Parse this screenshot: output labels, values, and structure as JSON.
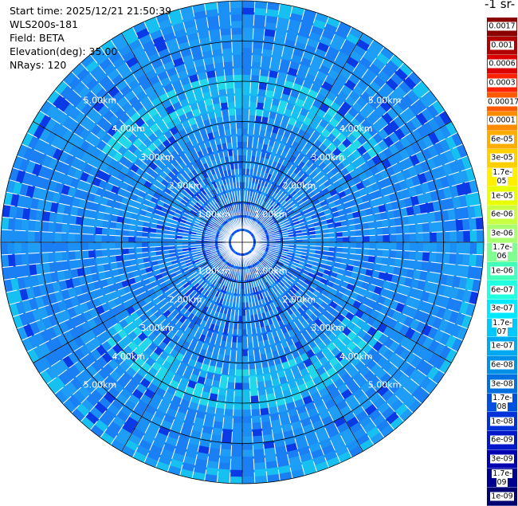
{
  "header": {
    "start_time": "Start time: 2025/12/21 21:50:39",
    "instrument": "WLS200s-181",
    "field": "Field: BETA",
    "elevation": "Elevation(deg): 35.00",
    "nrays": "NRays: 120"
  },
  "colorbar": {
    "title": "-1 sr-",
    "labels": [
      "0.0017",
      "0.001",
      "0.0006",
      "0.0003",
      "0.00017",
      "0.0001",
      "6e-05",
      "3e-05",
      "1.7e-05",
      "1e-05",
      "6e-06",
      "3e-06",
      "1.7e-06",
      "1e-06",
      "6e-07",
      "3e-07",
      "1.7e-07",
      "1e-07",
      "6e-08",
      "3e-08",
      "1.7e-08",
      "1e-08",
      "6e-09",
      "3e-09",
      "1.7e-09",
      "1e-09"
    ],
    "colors": [
      "#8b0000",
      "#b20000",
      "#dd0000",
      "#ff2200",
      "#ff5a00",
      "#ff8c00",
      "#ffad00",
      "#ffd000",
      "#fff000",
      "#e8ff00",
      "#c8ff40",
      "#a8ff70",
      "#80ff90",
      "#40ffb8",
      "#20ffe0",
      "#00e8ff",
      "#00c8ff",
      "#00a8f0",
      "#0090e8",
      "#0070e0",
      "#0050e0",
      "#0030d8",
      "#0018c8",
      "#0000b0",
      "#000090",
      "#000070"
    ]
  },
  "chart_data": {
    "type": "heatmap",
    "subtype": "polar-ppi",
    "field": "BETA",
    "elevation_deg": 35.0,
    "n_rays": 120,
    "range_rings_km": [
      1.0,
      2.0,
      3.0,
      4.0,
      5.0
    ],
    "ring_labels": [
      "1.00km",
      "2.00km",
      "3.00km",
      "4.00km",
      "5.00km"
    ],
    "max_range_km": 6.0,
    "value_range": [
      1e-09,
      0.0017
    ],
    "dominant_value": 6e-08,
    "enhanced_band_km": [
      3.2,
      4.1
    ],
    "enhanced_band_value": 3e-07,
    "grid": true
  }
}
